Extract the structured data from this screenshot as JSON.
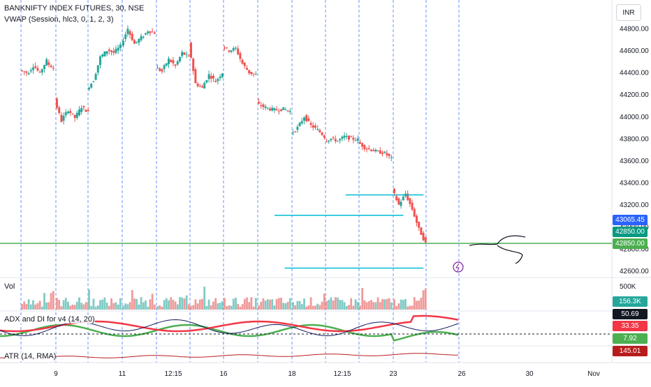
{
  "header": {
    "symbol_line": "BANKNIFTY INDEX FUTURES, 30, NSE",
    "vwap_line": "VWAP (Session, hlc3, 0, 1, 2, 3)"
  },
  "currency_label": "INR",
  "panes": {
    "volume_label": "Vol",
    "adx_label": "ADX and DI for v4 (14, 20)",
    "atr_label": "ATR (14, RMA)"
  },
  "tags": {
    "vwap_tag": {
      "text": "43065.45",
      "color": "#2962ff"
    },
    "last_price_tag": {
      "text": "42850.00",
      "color": "#089981"
    },
    "hline_tag": {
      "text": "42850.00",
      "color": "#4caf50"
    },
    "volume_tag": {
      "text": "156.3K",
      "color": "#26a69a"
    },
    "adx_tag": {
      "text": "50.69",
      "color": "#131722"
    },
    "di_minus_tag": {
      "text": "33.35",
      "color": "#f23645"
    },
    "di_plus_tag": {
      "text": "7.92",
      "color": "#4caf50"
    },
    "atr_tag": {
      "text": "145.01",
      "color": "#b71c1c"
    }
  },
  "chart_data": [
    {
      "type": "candlestick",
      "title": "BANKNIFTY INDEX FUTURES, 30, NSE",
      "x_tick_labels": [
        "9",
        "11",
        "12:15",
        "16",
        "18",
        "12:15",
        "23",
        "26",
        "30",
        "Nov"
      ],
      "y_ticks": [
        44800,
        44600,
        44400,
        44200,
        44000,
        43800,
        43600,
        43400,
        43200,
        43000,
        42800,
        42600
      ],
      "ylim": [
        42500,
        44900
      ],
      "grid": false,
      "colors": {
        "up": "#26a69a",
        "down": "#ef5350",
        "session_separator": "#2962ff"
      },
      "session_path": [
        [
          44420,
          44400
        ],
        [
          44380,
          44460
        ],
        [
          44470,
          44390
        ],
        [
          44400,
          44510
        ],
        [
          44490,
          44440
        ],
        [
          44150,
          43960
        ],
        [
          43970,
          44060
        ],
        [
          44060,
          43990
        ],
        [
          43990,
          44090
        ],
        [
          44090,
          44040
        ],
        [
          44250,
          44330
        ],
        [
          44330,
          44540
        ],
        [
          44540,
          44600
        ],
        [
          44610,
          44580
        ],
        [
          44580,
          44640
        ],
        [
          44650,
          44800
        ],
        [
          44790,
          44660
        ],
        [
          44660,
          44720
        ],
        [
          44710,
          44780
        ],
        [
          44780,
          44760
        ],
        [
          44450,
          44410
        ],
        [
          44420,
          44520
        ],
        [
          44520,
          44460
        ],
        [
          44460,
          44580
        ],
        [
          44580,
          44540
        ],
        [
          44660,
          44300
        ],
        [
          44300,
          44260
        ],
        [
          44270,
          44380
        ],
        [
          44380,
          44320
        ],
        [
          44320,
          44400
        ],
        [
          44640,
          44600
        ],
        [
          44600,
          44620
        ],
        [
          44620,
          44480
        ],
        [
          44480,
          44400
        ],
        [
          44400,
          44380
        ],
        [
          44120,
          44090
        ],
        [
          44090,
          44070
        ],
        [
          44070,
          44060
        ],
        [
          44060,
          44070
        ],
        [
          44070,
          44050
        ],
        [
          43840,
          43900
        ],
        [
          43900,
          44000
        ],
        [
          44000,
          43920
        ],
        [
          43920,
          43880
        ],
        [
          43880,
          43820
        ],
        [
          43780,
          43800
        ],
        [
          43800,
          43780
        ],
        [
          43780,
          43820
        ],
        [
          43820,
          43800
        ],
        [
          43800,
          43790
        ],
        [
          43770,
          43720
        ],
        [
          43720,
          43700
        ],
        [
          43700,
          43680
        ],
        [
          43680,
          43670
        ],
        [
          43670,
          43620
        ],
        [
          43340,
          43200
        ],
        [
          43200,
          43300
        ],
        [
          43300,
          43160
        ],
        [
          43160,
          42980
        ],
        [
          42980,
          42850
        ]
      ],
      "vwap_tag": 43065.45,
      "last_price": 42850.0,
      "horizontal_lines": [
        {
          "price": 43290,
          "color": "#00bcd4",
          "x_from_session": 9.6,
          "x_to_session": 11.9
        },
        {
          "price": 43105,
          "color": "#00bcd4",
          "x_from_session": 7.5,
          "x_to_session": 11.3
        },
        {
          "price": 42850,
          "color": "#4caf50",
          "x_from_session": 0,
          "x_to_session": 14.2
        },
        {
          "price": 42625,
          "color": "#00bcd4",
          "x_from_session": 7.8,
          "x_to_session": 11.9
        }
      ]
    },
    {
      "type": "bar",
      "title": "Vol",
      "last_value": "156.3K",
      "y_ticks": [
        "500K"
      ],
      "colors": {
        "up": "#26a69a",
        "down": "#ef5350"
      }
    },
    {
      "type": "line",
      "title": "ADX and DI for v4 (14, 20)",
      "series": [
        {
          "name": "ADX",
          "last": 50.69,
          "color": "#131a5c"
        },
        {
          "name": "DI-",
          "last": 33.35,
          "color": "#f23645"
        },
        {
          "name": "DI+",
          "last": 7.92,
          "color": "#4caf50"
        }
      ],
      "threshold": 20
    },
    {
      "type": "line",
      "title": "ATR (14, RMA)",
      "series": [
        {
          "name": "ATR",
          "last": 145.01,
          "color": "#b71c1c"
        }
      ]
    }
  ]
}
